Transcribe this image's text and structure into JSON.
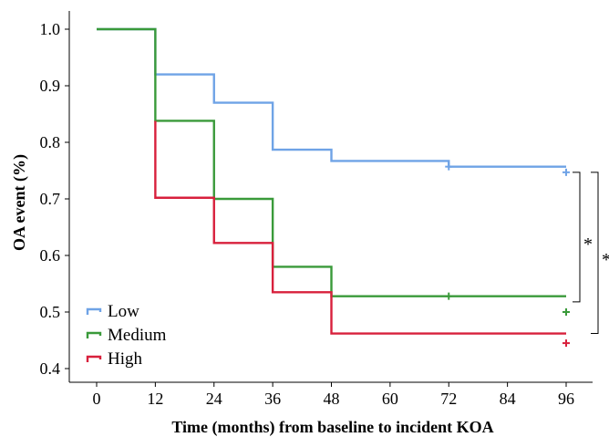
{
  "chart_data": {
    "type": "line",
    "step": true,
    "xlabel": "Time (months) from baseline to incident KOA",
    "ylabel": "OA event (%)",
    "xlim": [
      0,
      96
    ],
    "ylim": [
      0.4,
      1.0
    ],
    "x_ticks": [
      "0",
      "12",
      "24",
      "36",
      "48",
      "60",
      "72",
      "84",
      "96"
    ],
    "y_ticks": [
      "1.0",
      "0.9",
      "0.8",
      "0.7",
      "0.6",
      "0.5",
      "0.4"
    ],
    "grid": false,
    "legend_position": "bottom-left",
    "series": [
      {
        "name": "Low",
        "color": "#6fa3e6",
        "points": [
          [
            0,
            1.0
          ],
          [
            12,
            1.0
          ],
          [
            12,
            0.92
          ],
          [
            24,
            0.92
          ],
          [
            24,
            0.87
          ],
          [
            36,
            0.87
          ],
          [
            36,
            0.787
          ],
          [
            48,
            0.787
          ],
          [
            48,
            0.767
          ],
          [
            72,
            0.767
          ],
          [
            72,
            0.757
          ],
          [
            96,
            0.757
          ]
        ],
        "censor_x": [
          72,
          96
        ],
        "censor_y": [
          0.757,
          0.747
        ]
      },
      {
        "name": "Medium",
        "color": "#3a9a3a",
        "points": [
          [
            0,
            1.0
          ],
          [
            12,
            1.0
          ],
          [
            12,
            0.838
          ],
          [
            24,
            0.838
          ],
          [
            24,
            0.7
          ],
          [
            36,
            0.7
          ],
          [
            36,
            0.58
          ],
          [
            48,
            0.58
          ],
          [
            48,
            0.528
          ],
          [
            96,
            0.528
          ]
        ],
        "censor_x": [
          72,
          96
        ],
        "censor_y": [
          0.528,
          0.5
        ]
      },
      {
        "name": "High",
        "color": "#d8203c",
        "points": [
          [
            12,
            0.838
          ],
          [
            12,
            0.702
          ],
          [
            24,
            0.702
          ],
          [
            24,
            0.622
          ],
          [
            36,
            0.622
          ],
          [
            36,
            0.535
          ],
          [
            48,
            0.535
          ],
          [
            48,
            0.462
          ],
          [
            96,
            0.462
          ]
        ],
        "censor_x": [
          96
        ],
        "censor_y": [
          0.445
        ]
      }
    ],
    "annotations": [
      {
        "label": "*",
        "between": [
          "Low",
          "Medium"
        ],
        "y_top": 0.747,
        "y_bottom": 0.518
      },
      {
        "label": "*",
        "between": [
          "Low",
          "High"
        ],
        "y_top": 0.747,
        "y_bottom": 0.462
      }
    ]
  }
}
